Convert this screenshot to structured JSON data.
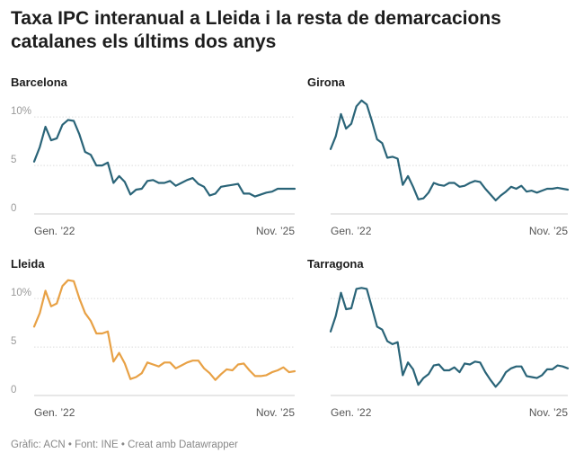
{
  "header": {
    "title": "Taxa IPC interanual a Lleida i la resta de demarcacions catalanes els últims dos anys"
  },
  "footer": {
    "text": "Gràfic: ACN • Font: INE • Creat amb Datawrapper"
  },
  "colors": {
    "default_line": "#2a6478",
    "highlight_line": "#e8a145",
    "gridline": "#dcdcdc",
    "tick_text": "#9a9a9a"
  },
  "chart_data": [
    {
      "type": "line",
      "title": "Barcelona",
      "x_start_label": "Gen. ’22",
      "x_end_label": "Nov. ’25",
      "y_ticks": [
        {
          "value": 0,
          "label": "0"
        },
        {
          "value": 5,
          "label": "5"
        },
        {
          "value": 10,
          "label": "10%"
        }
      ],
      "ylim": [
        0,
        11.5
      ],
      "grid": true,
      "color": "#2a6478",
      "values": [
        5.4,
        6.9,
        9.0,
        7.6,
        7.8,
        9.2,
        9.7,
        9.6,
        8.2,
        6.4,
        6.1,
        5.0,
        5.0,
        5.3,
        3.2,
        3.9,
        3.3,
        2.0,
        2.5,
        2.6,
        3.4,
        3.5,
        3.2,
        3.2,
        3.4,
        2.9,
        3.2,
        3.5,
        3.7,
        3.1,
        2.8,
        1.9,
        2.1,
        2.8,
        2.9,
        3.0,
        3.1,
        2.1,
        2.1,
        1.8,
        2.0,
        2.2,
        2.3,
        2.6,
        2.6,
        2.6,
        2.6
      ]
    },
    {
      "type": "line",
      "title": "Girona",
      "x_start_label": "Gen. ’22",
      "x_end_label": "Nov. ’25",
      "y_ticks": [
        {
          "value": 0,
          "label": ""
        },
        {
          "value": 5,
          "label": ""
        },
        {
          "value": 10,
          "label": ""
        }
      ],
      "ylim": [
        0,
        11.5
      ],
      "grid": true,
      "color": "#2a6478",
      "values": [
        6.7,
        8.0,
        10.3,
        8.8,
        9.3,
        11.1,
        11.7,
        11.3,
        9.6,
        7.7,
        7.3,
        5.8,
        5.9,
        5.7,
        3.0,
        3.9,
        2.8,
        1.5,
        1.6,
        2.2,
        3.2,
        3.0,
        2.9,
        3.2,
        3.2,
        2.8,
        2.9,
        3.2,
        3.4,
        3.3,
        2.6,
        2.0,
        1.4,
        1.9,
        2.3,
        2.8,
        2.6,
        2.9,
        2.3,
        2.4,
        2.2,
        2.4,
        2.6,
        2.6,
        2.7,
        2.6,
        2.5
      ]
    },
    {
      "type": "line",
      "title": "Lleida",
      "x_start_label": "Gen. ’22",
      "x_end_label": "Nov. ’25",
      "y_ticks": [
        {
          "value": 0,
          "label": "0"
        },
        {
          "value": 5,
          "label": "5"
        },
        {
          "value": 10,
          "label": "10%"
        }
      ],
      "ylim": [
        0,
        11.5
      ],
      "grid": true,
      "color": "#e8a145",
      "values": [
        7.1,
        8.5,
        10.8,
        9.2,
        9.5,
        11.3,
        11.9,
        11.8,
        10.0,
        8.5,
        7.7,
        6.4,
        6.4,
        6.6,
        3.5,
        4.4,
        3.3,
        1.7,
        1.9,
        2.3,
        3.4,
        3.2,
        3.0,
        3.4,
        3.4,
        2.8,
        3.1,
        3.4,
        3.6,
        3.6,
        2.8,
        2.3,
        1.6,
        2.2,
        2.7,
        2.6,
        3.2,
        3.3,
        2.6,
        2.0,
        2.0,
        2.1,
        2.4,
        2.6,
        2.9,
        2.4,
        2.5
      ]
    },
    {
      "type": "line",
      "title": "Tarragona",
      "x_start_label": "Gen. ’22",
      "x_end_label": "Nov. ’25",
      "y_ticks": [
        {
          "value": 0,
          "label": ""
        },
        {
          "value": 5,
          "label": ""
        },
        {
          "value": 10,
          "label": ""
        }
      ],
      "ylim": [
        0,
        11.5
      ],
      "grid": true,
      "color": "#2a6478",
      "values": [
        6.6,
        8.2,
        10.6,
        8.9,
        9.0,
        11.0,
        11.1,
        11.0,
        9.1,
        7.1,
        6.8,
        5.6,
        5.3,
        5.5,
        2.1,
        3.4,
        2.7,
        1.1,
        1.8,
        2.2,
        3.1,
        3.2,
        2.6,
        2.6,
        2.9,
        2.4,
        3.3,
        3.2,
        3.5,
        3.4,
        2.4,
        1.6,
        0.9,
        1.5,
        2.4,
        2.8,
        3.0,
        3.0,
        2.0,
        1.9,
        1.8,
        2.1,
        2.7,
        2.7,
        3.1,
        3.0,
        2.8
      ]
    }
  ]
}
